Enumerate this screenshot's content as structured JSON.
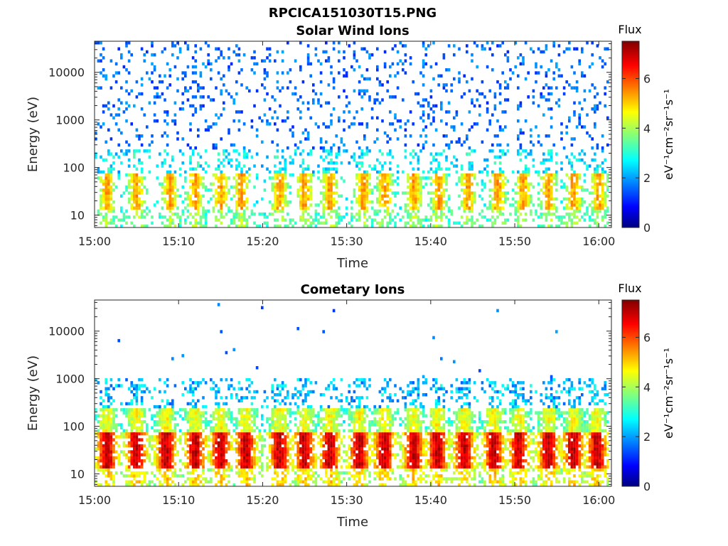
{
  "figure": {
    "filename": "RPCICA151030T15.PNG"
  },
  "chart_data": [
    {
      "type": "heatmap",
      "title": "Solar Wind Ions",
      "xlabel": "Time",
      "ylabel": "Energy (eV)",
      "x_ticks": [
        "15:00",
        "15:10",
        "15:20",
        "15:30",
        "15:40",
        "15:50",
        "16:00"
      ],
      "y_ticks": [
        "10",
        "100",
        "1000",
        "10000"
      ],
      "y_scale": "log",
      "ylim": [
        5.5,
        45000
      ],
      "xlim_minutes": [
        0,
        61.5
      ],
      "colorbar": {
        "label": "Flux",
        "unit": "eV⁻¹cm⁻²sr⁻¹s⁻¹",
        "ticks": [
          "0",
          "2",
          "4",
          "6"
        ],
        "range": [
          0,
          7.5
        ]
      },
      "bursts_minutes": [
        1.5,
        5,
        9,
        12,
        15,
        17.5,
        22,
        25,
        28,
        32,
        34.5,
        38,
        41,
        44.5,
        48,
        51,
        54,
        57,
        60
      ],
      "background": "sparse blue counts 300-30000 eV"
    },
    {
      "type": "heatmap",
      "title": "Cometary Ions",
      "xlabel": "Time",
      "ylabel": "Energy (eV)",
      "x_ticks": [
        "15:00",
        "15:10",
        "15:20",
        "15:30",
        "15:40",
        "15:50",
        "16:00"
      ],
      "y_ticks": [
        "10",
        "100",
        "1000",
        "10000"
      ],
      "y_scale": "log",
      "ylim": [
        5.5,
        45000
      ],
      "xlim_minutes": [
        0,
        61.5
      ],
      "colorbar": {
        "label": "Flux",
        "unit": "eV⁻¹cm⁻²sr⁻¹s⁻¹",
        "ticks": [
          "0",
          "2",
          "4",
          "6"
        ],
        "range": [
          0,
          7.5
        ]
      },
      "bursts_minutes": [
        1.5,
        5,
        8.5,
        12,
        15,
        18,
        22,
        25,
        28,
        31.5,
        34.5,
        38,
        40.8,
        44,
        47.5,
        50.5,
        54,
        57,
        59.8
      ],
      "background": "dense emission 15-300 eV, peak ~30 eV"
    }
  ]
}
